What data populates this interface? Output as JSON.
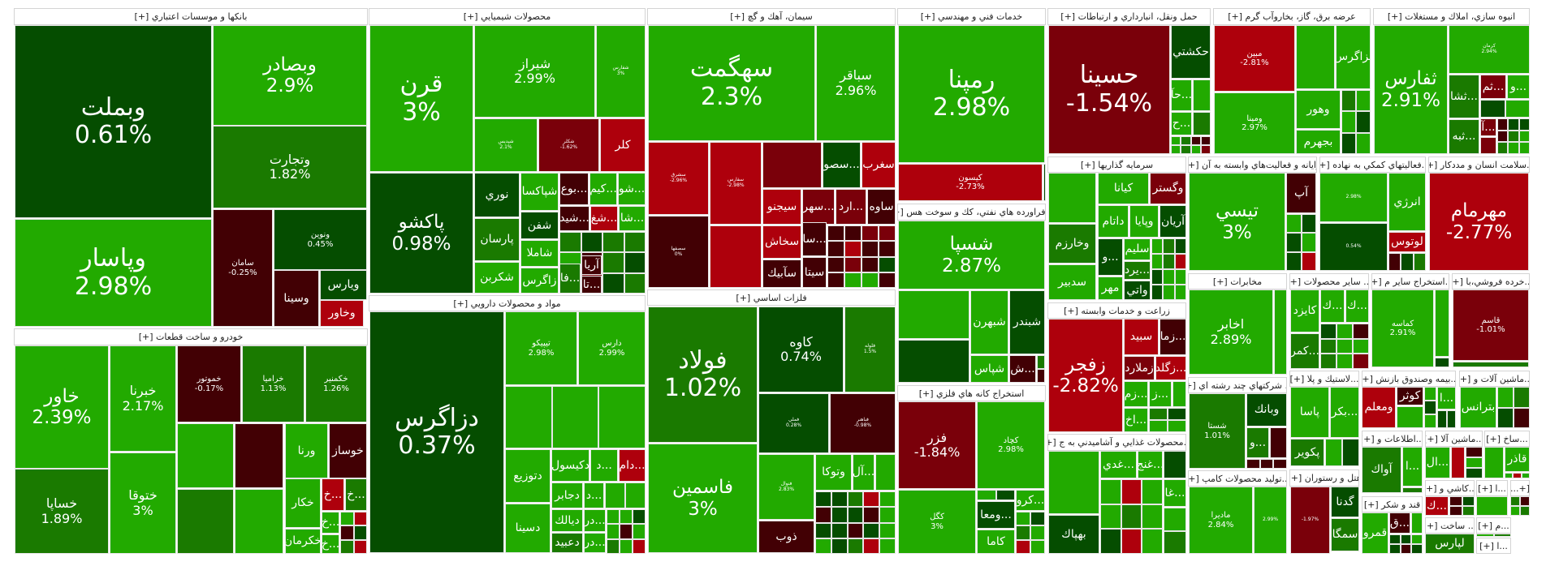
{
  "tones": {
    "G": "#22aa00",
    "M": "#1a7a00",
    "D": "#054d00",
    "R": "#ae000c",
    "X": "#7a000a",
    "V": "#420004"
  },
  "sectors": [
    {
      "title": "بانکها و موسسات اعتباري [+]",
      "tiles": [
        {
          "name": "وبملت",
          "change": "0.61%",
          "tone": "D"
        },
        {
          "name": "وبصادر",
          "change": "2.9%",
          "tone": "G"
        },
        {
          "name": "وتجارت",
          "change": "1.82%",
          "tone": "M"
        },
        {
          "name": "وپاسار",
          "change": "2.98%",
          "tone": "G"
        },
        {
          "name": "سامان",
          "change": "-0.25%",
          "tone": "V"
        },
        {
          "name": "ونوين",
          "change": "0.45%",
          "tone": "D"
        },
        {
          "name": "وسينا",
          "tone": "V"
        },
        {
          "name": "ويارس",
          "tone": "D"
        },
        {
          "name": "وخاور",
          "tone": "R"
        }
      ]
    },
    {
      "title": "خودرو و ساخت قطعات [+]",
      "tiles": [
        {
          "name": "خاور",
          "change": "2.39%",
          "tone": "G"
        },
        {
          "name": "خساپا",
          "change": "1.89%",
          "tone": "M"
        },
        {
          "name": "خبرنا",
          "change": "2.17%",
          "tone": "G"
        },
        {
          "name": "ختوقا",
          "change": "3%",
          "tone": "G"
        },
        {
          "name": "خموتور",
          "change": "-0.17%",
          "tone": "V"
        },
        {
          "name": "خراميا",
          "change": "1.13%",
          "tone": "M"
        },
        {
          "name": "خكمنير",
          "change": "1.26%",
          "tone": "M"
        },
        {
          "name": "ورنا",
          "tone": "G"
        },
        {
          "name": "خوساز",
          "tone": "V"
        },
        {
          "name": "خكار",
          "tone": "G"
        },
        {
          "name": "خكرمان",
          "tone": "G"
        },
        {
          "name": "...خ",
          "tone": "R"
        },
        {
          "name": "...خ",
          "tone": "M"
        },
        {
          "name": "...خ",
          "tone": "G"
        },
        {
          "name": "...خ",
          "tone": "G"
        }
      ]
    },
    {
      "title": "محصولات شيميايي [+]",
      "tiles": [
        {
          "name": "قرن",
          "change": "3%",
          "tone": "G"
        },
        {
          "name": "شيراز",
          "change": "2.99%",
          "tone": "G"
        },
        {
          "name": "شفارس",
          "change": "3%",
          "tone": "G"
        },
        {
          "name": "شپديس",
          "change": "2.1%",
          "tone": "G"
        },
        {
          "name": "شكلر",
          "change": "-1.62%",
          "tone": "X"
        },
        {
          "name": "كلر",
          "tone": "R"
        },
        {
          "name": "پاكشو",
          "change": "0.98%",
          "tone": "D"
        },
        {
          "name": "نوري",
          "tone": "D"
        },
        {
          "name": "پارسان",
          "tone": "M"
        },
        {
          "name": "شكربن",
          "tone": "G"
        },
        {
          "name": "شپاكسا",
          "tone": "G"
        },
        {
          "name": "شفن",
          "tone": "D"
        },
        {
          "name": "شاملا",
          "tone": "G"
        },
        {
          "name": "زاگرس",
          "tone": "G"
        },
        {
          "name": "...بوع",
          "tone": "V"
        },
        {
          "name": "...كيم",
          "tone": "G"
        },
        {
          "name": "...شو",
          "tone": "G"
        },
        {
          "name": "...شيد",
          "tone": "V"
        },
        {
          "name": "...شغ",
          "tone": "R"
        },
        {
          "name": "...شا",
          "tone": "G"
        },
        {
          "name": "آريا",
          "tone": "V"
        },
        {
          "name": "...تا",
          "tone": "V"
        },
        {
          "name": "...فا",
          "tone": "M"
        }
      ]
    },
    {
      "title": "مواد و محصولات دارويي [+]",
      "tiles": [
        {
          "name": "دزاگرس",
          "change": "0.37%",
          "tone": "D"
        },
        {
          "name": "تيپيكو",
          "change": "2.98%",
          "tone": "G"
        },
        {
          "name": "دارس",
          "change": "2.99%",
          "tone": "G"
        },
        {
          "name": "دتوزيع",
          "tone": "G"
        },
        {
          "name": "دسينا",
          "tone": "G"
        },
        {
          "name": "دكيسول",
          "tone": "G"
        },
        {
          "name": "...د",
          "tone": "G"
        },
        {
          "name": "...دام",
          "tone": "R"
        },
        {
          "name": "دجابر",
          "tone": "G"
        },
        {
          "name": "...د",
          "tone": "G"
        },
        {
          "name": "ديالك",
          "tone": "G"
        },
        {
          "name": "دعبيد",
          "tone": "M"
        },
        {
          "name": "...در",
          "tone": "G"
        },
        {
          "name": "...در",
          "tone": "G"
        }
      ]
    },
    {
      "title": "سيمان، آهك و گچ [+]",
      "tiles": [
        {
          "name": "سهگمت",
          "change": "2.3%",
          "tone": "G"
        },
        {
          "name": "سباقر",
          "change": "2.96%",
          "tone": "G"
        },
        {
          "name": "سشرق",
          "change": "-2.96%",
          "tone": "R"
        },
        {
          "name": "سفارس",
          "change": "-2.98%",
          "tone": "R"
        },
        {
          "name": "سصفها",
          "change": "0%",
          "tone": "V"
        },
        {
          "name": "...سصو",
          "tone": "D"
        },
        {
          "name": "سغرب",
          "tone": "R"
        },
        {
          "name": "سيجنو",
          "tone": "R"
        },
        {
          "name": "...سهر",
          "tone": "X"
        },
        {
          "name": "...ارد",
          "tone": "X"
        },
        {
          "name": "ساوه",
          "tone": "V"
        },
        {
          "name": "سخاش",
          "tone": "R"
        },
        {
          "name": "سآبيك",
          "tone": "V"
        },
        {
          "name": "...سا",
          "tone": "V"
        },
        {
          "name": "سيتا",
          "tone": "V"
        }
      ]
    },
    {
      "title": "فلزات اساسي [+]",
      "tiles": [
        {
          "name": "فولاد",
          "change": "1.02%",
          "tone": "M"
        },
        {
          "name": "فاسمين",
          "change": "3%",
          "tone": "G"
        },
        {
          "name": "كاوه",
          "change": "0.74%",
          "tone": "D"
        },
        {
          "name": "فلوله",
          "change": "1.5%",
          "tone": "M"
        },
        {
          "name": "فملي",
          "change": "0.28%",
          "tone": "D"
        },
        {
          "name": "فباهنر",
          "change": "-0.98%",
          "tone": "V"
        },
        {
          "name": "فنوال",
          "change": "2.83%",
          "tone": "G"
        },
        {
          "name": "ذوب",
          "tone": "V"
        },
        {
          "name": "وتوكا",
          "tone": "G"
        },
        {
          "name": "...آل",
          "tone": "G"
        }
      ]
    },
    {
      "title": "خدمات فني و مهندسي [+]",
      "tiles": [
        {
          "name": "رمپنا",
          "change": "2.98%",
          "tone": "G"
        },
        {
          "name": "كيسون",
          "change": "-2.73%",
          "tone": "R"
        }
      ]
    },
    {
      "title": "...فراورده هاي نفتي، كك و سوخت هس [+]",
      "tiles": [
        {
          "name": "شسپا",
          "change": "2.87%",
          "tone": "G"
        },
        {
          "name": "شبهرن",
          "tone": "G"
        },
        {
          "name": "شبندر",
          "tone": "D"
        },
        {
          "name": "شپاس",
          "tone": "G"
        },
        {
          "name": "...ش",
          "tone": "V"
        }
      ]
    },
    {
      "title": "استخراج كانه هاي فلزي [+]",
      "tiles": [
        {
          "name": "فزر",
          "change": "-1.84%",
          "tone": "X"
        },
        {
          "name": "كچاد",
          "change": "2.98%",
          "tone": "G"
        },
        {
          "name": "كگل",
          "change": "3%",
          "tone": "G"
        },
        {
          "name": "...ومعا",
          "tone": "D"
        },
        {
          "name": "كاما",
          "tone": "G"
        },
        {
          "name": "...كرو",
          "tone": "G"
        }
      ]
    },
    {
      "title": "حمل ونقل، انبارداري و ارتباطات [+]",
      "tiles": [
        {
          "name": "حسينا",
          "change": "-1.54%",
          "tone": "X"
        },
        {
          "name": "حكشتي",
          "tone": "D"
        },
        {
          "name": "...حآ",
          "tone": "G"
        },
        {
          "name": "...ح",
          "tone": "G"
        }
      ]
    },
    {
      "title": "سرمايه گذاريها [+]",
      "tiles": [
        {
          "name": "كيانا",
          "tone": "G"
        },
        {
          "name": "وگستر",
          "tone": "X"
        },
        {
          "name": "داتام",
          "tone": "G"
        },
        {
          "name": "وپايا",
          "tone": "G"
        },
        {
          "name": "آريان",
          "tone": "D"
        },
        {
          "name": "وخارزم",
          "tone": "M"
        },
        {
          "name": "سدبير",
          "tone": "G"
        },
        {
          "name": "...و",
          "tone": "D"
        },
        {
          "name": "مهر",
          "tone": "G"
        },
        {
          "name": "سليم",
          "tone": "G"
        },
        {
          "name": "...يرد",
          "tone": "M"
        },
        {
          "name": "واتي",
          "tone": "D"
        }
      ]
    },
    {
      "title": "زراعت و خدمات وابسته [+]",
      "tiles": [
        {
          "name": "زفجر",
          "change": "-2.82%",
          "tone": "R"
        },
        {
          "name": "سبيد",
          "tone": "R"
        },
        {
          "name": "...زما",
          "tone": "V"
        },
        {
          "name": "زملارد",
          "tone": "X"
        },
        {
          "name": "...زگلد",
          "tone": "R"
        },
        {
          "name": "...زم",
          "tone": "G"
        },
        {
          "name": "...ز",
          "tone": "G"
        },
        {
          "name": "...اخ",
          "tone": "G"
        }
      ]
    },
    {
      "title": "...محصولات غذايي و آشاميدني به ج [+]",
      "tiles": [
        {
          "name": "بهپاك",
          "tone": "D"
        },
        {
          "name": "...غدي",
          "tone": "G"
        },
        {
          "name": "...غنج",
          "tone": "G"
        },
        {
          "name": "...غا",
          "tone": "G"
        }
      ]
    },
    {
      "title": "عرضه برق، گاز، بخاروآب گرم [+]",
      "tiles": [
        {
          "name": "مبين",
          "change": "-2.81%",
          "tone": "R"
        },
        {
          "name": "ومپنا",
          "change": "2.97%",
          "tone": "G"
        },
        {
          "name": "بزاگرس",
          "tone": "G"
        },
        {
          "name": "وهور",
          "tone": "G"
        },
        {
          "name": "بجهرم",
          "tone": "G"
        }
      ]
    },
    {
      "title": "انبوه سازي، املاك و مستغلات [+]",
      "tiles": [
        {
          "name": "ثفارس",
          "change": "2.91%",
          "tone": "G"
        },
        {
          "name": "كرمان",
          "change": "2.94%",
          "tone": "G"
        },
        {
          "name": "...ثشا",
          "tone": "M"
        },
        {
          "name": "...ثم",
          "tone": "X"
        },
        {
          "name": "...و",
          "tone": "G"
        },
        {
          "name": "...ثبه",
          "tone": "M"
        },
        {
          "name": "...آ",
          "tone": "X"
        }
      ]
    },
    {
      "title": "رايانه و فعاليت‌هاي وابسته به آن [+]",
      "tiles": [
        {
          "name": "تيسي",
          "change": "3%",
          "tone": "G"
        },
        {
          "name": "آپ",
          "tone": "V"
        }
      ]
    },
    {
      "title": "...فعاليتهاي كمكي به نهاده [+]",
      "tiles": [
        {
          "name": "",
          "change": "2.98%",
          "tone": "G"
        },
        {
          "name": "",
          "change": "0.54%",
          "tone": "D"
        },
        {
          "name": "انرژي",
          "tone": "G"
        },
        {
          "name": "لوتوس",
          "tone": "R"
        }
      ]
    },
    {
      "title": "...سلامت انسان و مددكار [+]",
      "tiles": [
        {
          "name": "مهرمام",
          "change": "-2.77%",
          "tone": "R"
        }
      ]
    },
    {
      "title": "مخابرات [+]",
      "tiles": [
        {
          "name": "اخابر",
          "change": "2.89%",
          "tone": "G"
        }
      ]
    },
    {
      "title": "... ساير محصولات [+]",
      "tiles": [
        {
          "name": "كايزد",
          "tone": "G"
        },
        {
          "name": "...ك",
          "tone": "G"
        },
        {
          "name": "...ك",
          "tone": "G"
        },
        {
          "name": "...كمر",
          "tone": "M"
        }
      ]
    },
    {
      "title": "...استخراج ساير م [+]",
      "tiles": [
        {
          "name": "كماسه",
          "change": "2.91%",
          "tone": "G"
        }
      ]
    },
    {
      "title": "...خرده فروشي،با [+]",
      "tiles": [
        {
          "name": "قاسم",
          "change": "-1.01%",
          "tone": "X"
        }
      ]
    },
    {
      "title": "... شركتهاي چند رشته اي [+]",
      "tiles": [
        {
          "name": "شستا",
          "change": "1.01%",
          "tone": "M"
        },
        {
          "name": "وبانك",
          "tone": "D"
        },
        {
          "name": "...و",
          "tone": "M"
        }
      ]
    },
    {
      "title": "...توليد محصولات كامپ [+]",
      "tiles": [
        {
          "name": "ماديرا",
          "change": "2.84%",
          "tone": "G"
        },
        {
          "name": "",
          "change": "2.99%",
          "tone": "G"
        }
      ]
    },
    {
      "title": "...لاستيك و پلا [+]",
      "tiles": [
        {
          "name": "پاسا",
          "tone": "G"
        },
        {
          "name": "...بكر",
          "tone": "G"
        },
        {
          "name": "پكوير",
          "tone": "M"
        }
      ]
    },
    {
      "title": "هتل و رستوران [+]",
      "tiles": [
        {
          "name": "",
          "change": "-1.97%",
          "tone": "X"
        },
        {
          "name": "گدنا",
          "tone": "D"
        },
        {
          "name": "سمگا",
          "tone": "M"
        }
      ]
    },
    {
      "title": "...بيمه وصندوق بازنش [+]",
      "tiles": [
        {
          "name": "ومعلم",
          "tone": "R"
        },
        {
          "name": "كوثر",
          "tone": "V"
        },
        {
          "name": "...ا",
          "tone": "G"
        }
      ]
    },
    {
      "title": "...ماشين آلات و [+]",
      "tiles": [
        {
          "name": "بترانس",
          "tone": "G"
        }
      ]
    },
    {
      "title": "...اطلاعات و [+]",
      "tiles": [
        {
          "name": "آواك",
          "tone": "M"
        },
        {
          "name": "...ا",
          "tone": "G"
        }
      ]
    },
    {
      "title": "...ماشين آلا [+]",
      "tiles": [
        {
          "name": "...ال",
          "tone": "G"
        }
      ]
    },
    {
      "title": "...ساخ [+]",
      "tiles": [
        {
          "name": "قاذر",
          "tone": "G"
        }
      ]
    },
    {
      "title": "قند و شكر [+]",
      "tiles": [
        {
          "name": "قمرو",
          "tone": "G"
        },
        {
          "name": "...ق",
          "tone": "V"
        }
      ]
    },
    {
      "title": "...كاشي و [+]",
      "tiles": [
        {
          "name": "...ك",
          "tone": "R"
        }
      ]
    },
    {
      "title": "...ا [+]",
      "tiles": []
    },
    {
      "title": "[+...",
      "tiles": []
    },
    {
      "title": "... ساخت [+]",
      "tiles": [
        {
          "name": "لپارس",
          "tone": "M"
        }
      ]
    },
    {
      "title": "...م [+]",
      "tiles": []
    },
    {
      "title": "...ا [+]",
      "tiles": []
    }
  ]
}
